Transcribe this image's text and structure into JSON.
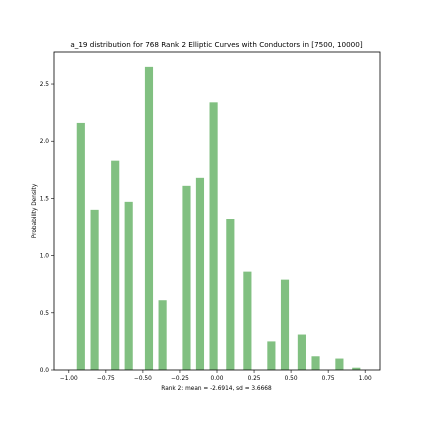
{
  "chart_data": {
    "type": "bar",
    "title": "a_19 distribution for 768 Rank 2 Elliptic Curves with Conductors in [7500, 10000]",
    "xlabel": "Rank 2: mean = -2.6914, sd = 3.6668",
    "ylabel": "Probability Density",
    "xlim": [
      -1.1,
      1.1
    ],
    "ylim": [
      0,
      2.78
    ],
    "xticks": [
      -1.0,
      -0.75,
      -0.5,
      -0.25,
      0.0,
      0.25,
      0.5,
      0.75,
      1.0
    ],
    "xtick_labels": [
      "−1.00",
      "−0.75",
      "−0.50",
      "−0.25",
      "0.00",
      "0.25",
      "0.50",
      "0.75",
      "1.00"
    ],
    "yticks": [
      0.0,
      0.5,
      1.0,
      1.5,
      2.0,
      2.5
    ],
    "ytick_labels": [
      "0.0",
      "0.5",
      "1.0",
      "1.5",
      "2.0",
      "2.5"
    ],
    "bar_width": 0.055,
    "color": "#81c081",
    "bars": [
      {
        "x": -0.919,
        "value": 2.16
      },
      {
        "x": -0.826,
        "value": 1.4
      },
      {
        "x": -0.687,
        "value": 1.83
      },
      {
        "x": -0.596,
        "value": 1.47
      },
      {
        "x": -0.459,
        "value": 2.65
      },
      {
        "x": -0.367,
        "value": 0.61
      },
      {
        "x": -0.206,
        "value": 1.61
      },
      {
        "x": -0.115,
        "value": 1.68
      },
      {
        "x": -0.023,
        "value": 2.34
      },
      {
        "x": 0.09,
        "value": 1.32
      },
      {
        "x": 0.205,
        "value": 0.86
      },
      {
        "x": 0.367,
        "value": 0.25
      },
      {
        "x": 0.459,
        "value": 0.79
      },
      {
        "x": 0.573,
        "value": 0.31
      },
      {
        "x": 0.665,
        "value": 0.12
      },
      {
        "x": 0.826,
        "value": 0.1
      },
      {
        "x": 0.94,
        "value": 0.02
      }
    ]
  }
}
